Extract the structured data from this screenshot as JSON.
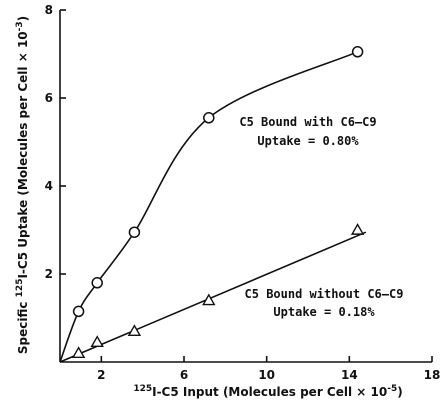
{
  "chart_data": {
    "type": "scatter",
    "xlabel": {
      "base": "I-C5 Input (Molecules per Cell × 10",
      "exp": "-5",
      "close": ")",
      "sup": "125"
    },
    "ylabel": {
      "sup": "125",
      "pre": "Specific ",
      "base": "I-C5 Uptake (Molecules per Cell × 10",
      "exp": "-3",
      "close": ")"
    },
    "xlim": [
      0,
      18
    ],
    "ylim": [
      0,
      8
    ],
    "x_ticks": [
      "2",
      "6",
      "10",
      "14",
      "18"
    ],
    "x_tick_values": [
      2,
      6,
      10,
      14,
      18
    ],
    "y_ticks": [
      "2",
      "4",
      "6",
      "8"
    ],
    "y_tick_values": [
      2,
      4,
      6,
      8
    ],
    "series": [
      {
        "marker": "circle",
        "points": [
          [
            0.9,
            1.15
          ],
          [
            1.8,
            1.8
          ],
          [
            3.6,
            2.95
          ],
          [
            7.2,
            5.55
          ],
          [
            14.4,
            7.05
          ]
        ],
        "fit": "curve"
      },
      {
        "marker": "triangle",
        "points": [
          [
            0.9,
            0.2
          ],
          [
            1.8,
            0.45
          ],
          [
            3.6,
            0.7
          ],
          [
            7.2,
            1.4
          ],
          [
            14.4,
            3.0
          ]
        ],
        "fit": "line"
      }
    ],
    "annotations": [
      {
        "line1": "C5 Bound with C6–C9",
        "line2": "Uptake = 0.80%"
      },
      {
        "line1": "C5 Bound without C6–C9",
        "line2": "Uptake = 0.18%"
      }
    ]
  }
}
